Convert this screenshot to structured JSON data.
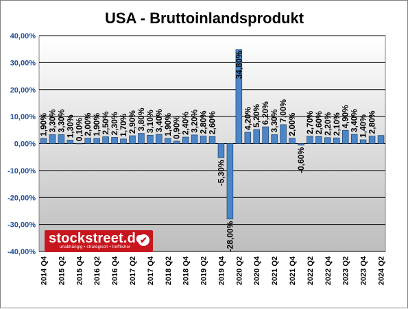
{
  "chart_data": {
    "type": "bar",
    "title": "USA - Bruttoinlandsprodukt",
    "xlabel": "",
    "ylabel": "",
    "ylim": [
      -40,
      40
    ],
    "y_ticks": [
      "40,00%",
      "30,00%",
      "20,00%",
      "10,00%",
      "0,00%",
      "-10,00%",
      "-20,00%",
      "-30,00%",
      "-40,00%"
    ],
    "grid": true,
    "legend": "none",
    "colors": {
      "bar": "#4a86c8",
      "bar_edge": "#1f3f66",
      "plot_top": "#ffffff",
      "plot_bottom": "#bdbdbd",
      "tick_color": "#1f4e9c"
    },
    "categories": [
      "2014 Q4",
      "2015 Q1",
      "2015 Q2",
      "2015 Q3",
      "2015 Q4",
      "2016 Q1",
      "2016 Q2",
      "2016 Q3",
      "2016 Q4",
      "2017 Q1",
      "2017 Q2",
      "2017 Q3",
      "2017 Q4",
      "2018 Q1",
      "2018 Q2",
      "2018 Q3",
      "2018 Q4",
      "2019 Q1",
      "2019 Q2",
      "2019 Q3",
      "2019 Q4",
      "2020 Q1",
      "2020 Q2",
      "2020 Q3",
      "2020 Q4",
      "2021 Q1",
      "2021 Q2",
      "2021 Q3",
      "2021 Q4",
      "2022 Q1",
      "2022 Q2",
      "2022 Q3",
      "2022 Q4",
      "2023 Q1",
      "2023 Q2",
      "2023 Q3",
      "2023 Q4",
      "2024 Q1",
      "2024 Q2"
    ],
    "x_tick_labels": [
      "2014 Q4",
      "",
      "2015 Q2",
      "",
      "2015 Q4",
      "",
      "2016 Q2",
      "",
      "2016 Q4",
      "",
      "2017 Q2",
      "",
      "2017 Q4",
      "",
      "2018 Q2",
      "",
      "2018 Q4",
      "",
      "2019 Q2",
      "",
      "2019 Q4",
      "",
      "2020 Q2",
      "",
      "2020 Q4",
      "",
      "2021 Q2",
      "",
      "2021 Q4",
      "",
      "2022 Q2",
      "",
      "2022 Q4",
      "",
      "2023 Q2",
      "",
      "2023 Q4",
      "",
      "2024 Q2"
    ],
    "values": [
      1.9,
      3.3,
      3.3,
      1.3,
      0.1,
      2.0,
      1.9,
      2.5,
      2.3,
      1.7,
      2.9,
      3.8,
      3.1,
      3.4,
      1.9,
      0.9,
      2.4,
      3.2,
      2.8,
      2.6,
      -5.3,
      -28.0,
      34.8,
      4.2,
      5.2,
      6.2,
      3.3,
      7.0,
      2.0,
      -0.6,
      2.7,
      2.6,
      2.2,
      2.1,
      4.9,
      3.4,
      1.4,
      2.8,
      3.0
    ],
    "data_labels": [
      "1,90%",
      "3,30%",
      "3,30%",
      "1,30%",
      "0,10%",
      "2,00%",
      "1,90%",
      "2,50%",
      "2,30%",
      "1,70%",
      "2,90%",
      "3,80%",
      "3,10%",
      "3,40%",
      "1,90%",
      "0,90%",
      "2,40%",
      "3,20%",
      "2,80%",
      "2,60%",
      "-5,30%",
      "-28,00%",
      "34,80%",
      "4,20%",
      "5,20%",
      "6,20%",
      "3,30%",
      "7,00%",
      "2,00%",
      "-0,60%",
      "2,70%",
      "2,60%",
      "2,20%",
      "2,10%",
      "4,90%",
      "3,40%",
      "1,40%",
      "2,80%",
      ""
    ]
  },
  "logo": {
    "brand": "stockstreet.de",
    "tagline": "unabhängig • strategisch • trefflicher",
    "check_icon": "✔"
  }
}
